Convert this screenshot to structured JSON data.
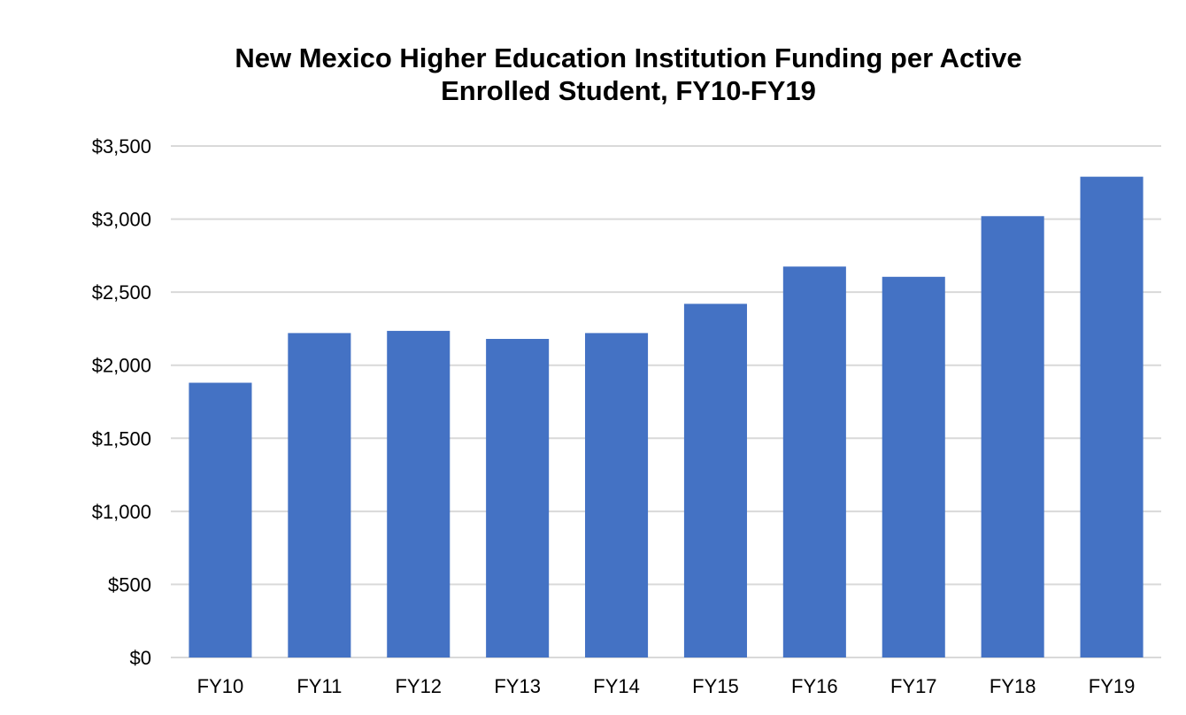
{
  "chart_data": {
    "type": "bar",
    "title_lines": [
      "New Mexico Higher Education Institution Funding per Active",
      "Enrolled Student, FY10-FY19"
    ],
    "categories": [
      "FY10",
      "FY11",
      "FY12",
      "FY13",
      "FY14",
      "FY15",
      "FY16",
      "FY17",
      "FY18",
      "FY19"
    ],
    "values": [
      1880,
      2220,
      2235,
      2180,
      2220,
      2420,
      2675,
      2605,
      3020,
      3290
    ],
    "ylim": [
      0,
      3500
    ],
    "yticks": [
      0,
      500,
      1000,
      1500,
      2000,
      2500,
      3000,
      3500
    ],
    "ytick_labels": [
      "$0",
      "$500",
      "$1,000",
      "$1,500",
      "$2,000",
      "$2,500",
      "$3,000",
      "$3,500"
    ],
    "grid": true,
    "legend": "none",
    "bar_color": "#4472C4",
    "grid_color": "#D9D9D9"
  }
}
